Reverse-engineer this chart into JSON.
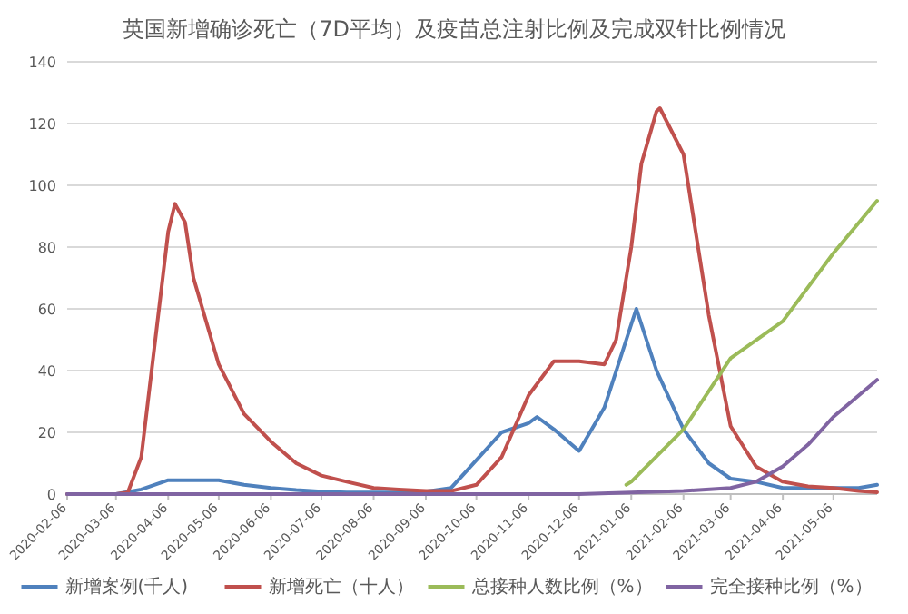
{
  "chart_data": {
    "type": "line",
    "title": "英国新增确诊死亡（7D平均）及疫苗总注射比例及完成双针比例情况",
    "xlim": [
      "2020-02-06",
      "2021-06-01"
    ],
    "xticks": [
      "2020-02-06",
      "2020-03-06",
      "2020-04-06",
      "2020-05-06",
      "2020-06-06",
      "2020-07-06",
      "2020-08-06",
      "2020-09-06",
      "2020-10-06",
      "2020-11-06",
      "2020-12-06",
      "2021-01-06",
      "2021-02-06",
      "2021-03-06",
      "2021-04-06",
      "2021-05-06"
    ],
    "ylim": [
      0,
      140
    ],
    "yticks": [
      0,
      20,
      40,
      60,
      80,
      100,
      120,
      140
    ],
    "grid": "y",
    "legend": "bottom",
    "series": [
      {
        "name": "新增案例(千人)",
        "color": "#4f81bd",
        "x": [
          "2020-02-06",
          "2020-02-21",
          "2020-03-06",
          "2020-03-21",
          "2020-04-06",
          "2020-04-21",
          "2020-05-06",
          "2020-05-21",
          "2020-06-06",
          "2020-06-21",
          "2020-07-06",
          "2020-07-21",
          "2020-08-06",
          "2020-08-21",
          "2020-09-06",
          "2020-09-21",
          "2020-10-06",
          "2020-10-21",
          "2020-11-06",
          "2020-11-11",
          "2020-11-21",
          "2020-12-06",
          "2020-12-21",
          "2021-01-06",
          "2021-01-09",
          "2021-01-21",
          "2021-02-06",
          "2021-02-21",
          "2021-03-06",
          "2021-03-21",
          "2021-04-06",
          "2021-04-21",
          "2021-05-06",
          "2021-05-21",
          "2021-06-01"
        ],
        "values": [
          0,
          0,
          0,
          1.5,
          4.5,
          4.5,
          4.5,
          3,
          2,
          1.3,
          0.8,
          0.5,
          0.5,
          0.5,
          0.8,
          2,
          11,
          20,
          23,
          25,
          21,
          14,
          28,
          55,
          60,
          40,
          21,
          10,
          5,
          4,
          2,
          2,
          2,
          2,
          3
        ]
      },
      {
        "name": "新增死亡（十人）",
        "color": "#c0504d",
        "x": [
          "2020-02-06",
          "2020-02-21",
          "2020-03-06",
          "2020-03-13",
          "2020-03-21",
          "2020-04-06",
          "2020-04-10",
          "2020-04-16",
          "2020-04-21",
          "2020-05-06",
          "2020-05-21",
          "2020-06-06",
          "2020-06-21",
          "2020-07-06",
          "2020-07-21",
          "2020-08-06",
          "2020-08-21",
          "2020-09-06",
          "2020-09-21",
          "2020-10-06",
          "2020-10-21",
          "2020-11-06",
          "2020-11-21",
          "2020-12-06",
          "2020-12-21",
          "2020-12-28",
          "2021-01-06",
          "2021-01-12",
          "2021-01-21",
          "2021-01-23",
          "2021-02-06",
          "2021-02-21",
          "2021-03-06",
          "2021-03-21",
          "2021-04-06",
          "2021-04-21",
          "2021-05-06",
          "2021-05-21",
          "2021-06-01"
        ],
        "values": [
          0,
          0,
          0,
          0.5,
          12,
          85,
          94,
          88,
          70,
          42,
          26,
          17,
          10,
          6,
          4,
          2,
          1.5,
          1,
          1,
          3,
          12,
          32,
          43,
          43,
          42,
          50,
          80,
          107,
          124,
          125,
          110,
          58,
          22,
          9,
          4,
          2.5,
          2,
          1,
          0.6
        ]
      },
      {
        "name": "总接种人数比例（%）",
        "color": "#9bbb59",
        "x": [
          "2021-01-03",
          "2021-01-06",
          "2021-02-06",
          "2021-03-06",
          "2021-04-06",
          "2021-05-06",
          "2021-06-01"
        ],
        "values": [
          3,
          4,
          21,
          44,
          56,
          78,
          95
        ]
      },
      {
        "name": "完全接种比例（%）",
        "color": "#8064a2",
        "x": [
          "2020-02-06",
          "2020-12-06",
          "2021-01-06",
          "2021-02-06",
          "2021-03-06",
          "2021-03-21",
          "2021-04-06",
          "2021-04-21",
          "2021-05-06",
          "2021-06-01"
        ],
        "values": [
          0,
          0,
          0.5,
          1,
          2,
          4,
          9,
          16,
          25,
          37
        ]
      }
    ]
  }
}
